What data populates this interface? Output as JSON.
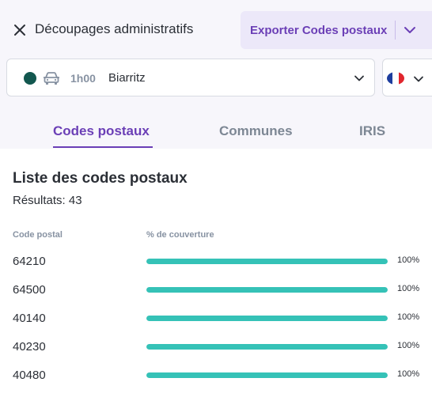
{
  "header": {
    "title": "Découpages administratifs",
    "export_label": "Exporter Codes postaux",
    "close_icon": "close-icon",
    "dropdown_icon": "chevron-down-icon"
  },
  "isochrone": {
    "dot_color": "#12574f",
    "mode_icon": "car-icon",
    "time": "1h00",
    "city": "Biarritz"
  },
  "country": {
    "flag": "france-flag-icon"
  },
  "tabs": [
    {
      "label": "Codes postaux",
      "active": true
    },
    {
      "label": "Communes",
      "active": false
    },
    {
      "label": "IRIS",
      "active": false
    }
  ],
  "list": {
    "title": "Liste des codes postaux",
    "results_label": "Résultats:",
    "results_count": "43",
    "columns": {
      "code": "Code postal",
      "coverage": "% de couverture"
    },
    "rows": [
      {
        "code": "64210",
        "coverage": 100,
        "coverage_label": "100%"
      },
      {
        "code": "64500",
        "coverage": 100,
        "coverage_label": "100%"
      },
      {
        "code": "40140",
        "coverage": 100,
        "coverage_label": "100%"
      },
      {
        "code": "40230",
        "coverage": 100,
        "coverage_label": "100%"
      },
      {
        "code": "40480",
        "coverage": 100,
        "coverage_label": "100%"
      }
    ]
  },
  "colors": {
    "accent": "#6b3fb6",
    "bar_fill": "#35c2b7",
    "bar_track": "#e6ecef"
  }
}
